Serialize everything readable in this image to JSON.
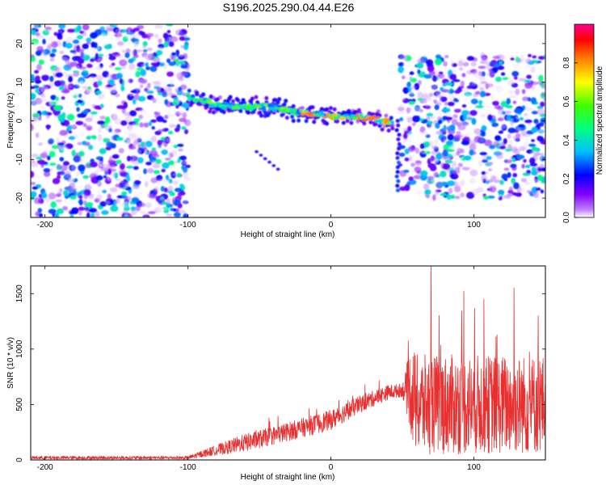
{
  "figure_title": "S196.2025.290.04.44.E26",
  "chart_data": [
    {
      "type": "heatmap",
      "panel": "top",
      "title": "",
      "xlabel": "Height of straight line (km)",
      "ylabel": "Frequency (Hz)",
      "xlim": [
        -210,
        150
      ],
      "ylim": [
        -25,
        25
      ],
      "xticks": [
        -200,
        -100,
        0,
        100
      ],
      "xtick_labels": [
        "-200",
        "-100",
        "0",
        "100"
      ],
      "yticks": [
        -20,
        -10,
        0,
        10,
        20
      ],
      "ytick_labels": [
        "-20",
        "-10",
        "0",
        "10",
        "20"
      ],
      "colorbar": {
        "label": "Normalized spectral amplitude",
        "range": [
          0,
          1
        ],
        "ticks": [
          0.0,
          0.2,
          0.4,
          0.6,
          0.8
        ],
        "tick_labels": [
          "0.0",
          "0.2",
          "0.4",
          "0.6",
          "0.8"
        ],
        "colors": [
          "#ffffff",
          "#8000ff",
          "#0000ff",
          "#00ffff",
          "#00ff00",
          "#ffff00",
          "#ff8000",
          "#ff0000",
          "#ff00a0"
        ]
      },
      "noise_regions": [
        {
          "x_range": [
            -210,
            -100
          ],
          "f_range": [
            -25,
            25
          ],
          "level": 0.25
        },
        {
          "x_range": [
            48,
            150
          ],
          "f_range": [
            -20,
            17
          ],
          "level": 0.25
        }
      ],
      "ridge": {
        "points": [
          {
            "x": -100,
            "f": 6.5
          },
          {
            "x": -80,
            "f": 4.0
          },
          {
            "x": -60,
            "f": 3.8
          },
          {
            "x": -40,
            "f": 3.5
          },
          {
            "x": -20,
            "f": 2.0
          },
          {
            "x": 0,
            "f": 1.2
          },
          {
            "x": 20,
            "f": 1.0
          },
          {
            "x": 30,
            "f": 0.5
          },
          {
            "x": 44,
            "f": -0.5
          }
        ],
        "peak_amplitude": 0.85
      },
      "tail": {
        "x_range": [
          -52,
          -37
        ],
        "f_range": [
          -8,
          -12.5
        ]
      },
      "drop": {
        "x": 47,
        "f_range": [
          0,
          -18
        ]
      }
    },
    {
      "type": "line",
      "panel": "bottom",
      "title": "",
      "xlabel": "Height of straight line (km)",
      "ylabel": "SNR (10 * v/v)",
      "xlim": [
        -210,
        150
      ],
      "ylim": [
        0,
        1750
      ],
      "xticks": [
        -200,
        -100,
        0,
        100
      ],
      "xtick_labels": [
        "-200",
        "-100",
        "0",
        "100"
      ],
      "yticks": [
        0,
        500,
        1000,
        1500
      ],
      "ytick_labels": [
        "0",
        "500",
        "1000",
        "1500"
      ],
      "color": "#e83030",
      "envelope": [
        {
          "x": -210,
          "y": 20
        },
        {
          "x": -100,
          "y": 20
        },
        {
          "x": -80,
          "y": 90
        },
        {
          "x": -40,
          "y": 220
        },
        {
          "x": 0,
          "y": 360
        },
        {
          "x": 20,
          "y": 500
        },
        {
          "x": 40,
          "y": 610
        },
        {
          "x": 55,
          "y": 640
        },
        {
          "x": 60,
          "y": 500
        },
        {
          "x": 150,
          "y": 500
        }
      ],
      "noise_amplitude": [
        {
          "x": -210,
          "a": 15
        },
        {
          "x": -100,
          "a": 15
        },
        {
          "x": -60,
          "a": 80
        },
        {
          "x": 0,
          "a": 90
        },
        {
          "x": 50,
          "a": 60
        },
        {
          "x": 57,
          "a": 450
        },
        {
          "x": 150,
          "a": 450
        }
      ],
      "peaks": [
        {
          "x": 52,
          "y": 780
        },
        {
          "x": 70,
          "y": 1750
        },
        {
          "x": 93,
          "y": 1520
        },
        {
          "x": 107,
          "y": 1450
        },
        {
          "x": 128,
          "y": 1550
        },
        {
          "x": 145,
          "y": 1300
        }
      ]
    }
  ]
}
